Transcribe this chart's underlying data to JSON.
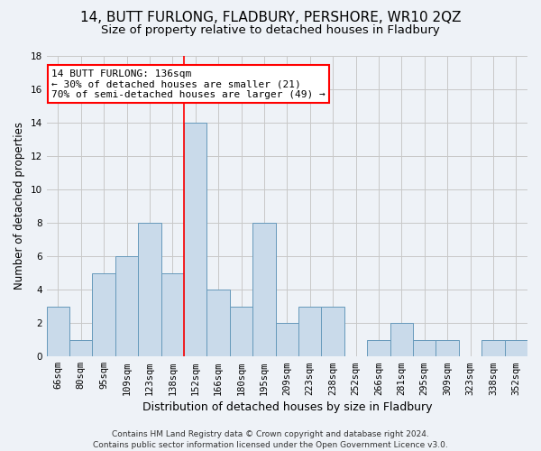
{
  "title": "14, BUTT FURLONG, FLADBURY, PERSHORE, WR10 2QZ",
  "subtitle": "Size of property relative to detached houses in Fladbury",
  "xlabel": "Distribution of detached houses by size in Fladbury",
  "ylabel": "Number of detached properties",
  "categories": [
    "66sqm",
    "80sqm",
    "95sqm",
    "109sqm",
    "123sqm",
    "138sqm",
    "152sqm",
    "166sqm",
    "180sqm",
    "195sqm",
    "209sqm",
    "223sqm",
    "238sqm",
    "252sqm",
    "266sqm",
    "281sqm",
    "295sqm",
    "309sqm",
    "323sqm",
    "338sqm",
    "352sqm"
  ],
  "values": [
    3,
    1,
    5,
    6,
    8,
    5,
    14,
    4,
    3,
    8,
    2,
    3,
    3,
    0,
    1,
    2,
    1,
    1,
    0,
    1,
    1
  ],
  "bar_color": "#c9daea",
  "bar_edge_color": "#6699bb",
  "ylim": [
    0,
    18
  ],
  "yticks": [
    0,
    2,
    4,
    6,
    8,
    10,
    12,
    14,
    16,
    18
  ],
  "red_line_x": 5.5,
  "annotation_line1": "14 BUTT FURLONG: 136sqm",
  "annotation_line2": "← 30% of detached houses are smaller (21)",
  "annotation_line3": "70% of semi-detached houses are larger (49) →",
  "annotation_box_color": "white",
  "annotation_box_edge": "red",
  "footer": "Contains HM Land Registry data © Crown copyright and database right 2024.\nContains public sector information licensed under the Open Government Licence v3.0.",
  "background_color": "#eef2f7",
  "grid_color": "#c8c8c8",
  "title_fontsize": 11,
  "subtitle_fontsize": 9.5,
  "xlabel_fontsize": 9,
  "ylabel_fontsize": 8.5,
  "tick_fontsize": 7.5,
  "annot_fontsize": 8,
  "footer_fontsize": 6.5
}
